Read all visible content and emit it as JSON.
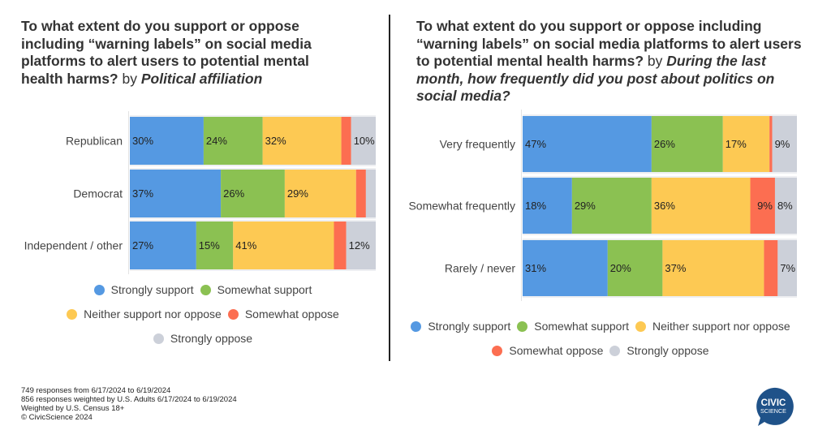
{
  "colors": {
    "strongly_support": "#5599e2",
    "somewhat_support": "#8bc152",
    "neither": "#fdc953",
    "somewhat_oppose": "#fc6e51",
    "strongly_oppose": "#ccd0d9",
    "track": "#eeeff2"
  },
  "left": {
    "title_main": "To what extent do you support or oppose including “warning labels” on social media platforms to alert users to potential mental health harms?",
    "title_by": " by ",
    "title_dim": "Political affiliation"
  },
  "right": {
    "title_main": "To what extent do you support or oppose including “warning labels” on social media platforms to alert users to potential mental health harms?",
    "title_by": " by ",
    "title_dim": "During the last month, how frequently did you post about politics on social media?"
  },
  "legend": {
    "strongly_support": "Strongly support",
    "somewhat_support": "Somewhat support",
    "neither": "Neither support nor oppose",
    "somewhat_oppose": "Somewhat oppose",
    "strongly_oppose": "Strongly oppose"
  },
  "footnote": {
    "line1": "749 responses from 6/17/2024 to 6/19/2024",
    "line2": "856 responses weighted by U.S. Adults 6/17/2024 to 6/19/2024",
    "line3": "Weighted by U.S. Census 18+",
    "line4": "© CivicScience 2024"
  },
  "logo": {
    "line1": "CIVIC",
    "line2": "SCIENCE"
  },
  "chart_data": [
    {
      "type": "bar",
      "orientation": "horizontal",
      "stacked": "percent",
      "title": "To what extent do you support or oppose including “warning labels” on social media platforms to alert users to potential mental health harms? by Political affiliation",
      "categories": [
        "Republican",
        "Democrat",
        "Independent / other"
      ],
      "series": [
        {
          "name": "Strongly support",
          "key": "strongly_support",
          "values": [
            30,
            37,
            27
          ],
          "labels": [
            "30%",
            "37%",
            "27%"
          ]
        },
        {
          "name": "Somewhat support",
          "key": "somewhat_support",
          "values": [
            24,
            26,
            15
          ],
          "labels": [
            "24%",
            "26%",
            "15%"
          ]
        },
        {
          "name": "Neither support nor oppose",
          "key": "neither",
          "values": [
            32,
            29,
            41
          ],
          "labels": [
            "32%",
            "29%",
            "41%"
          ]
        },
        {
          "name": "Somewhat oppose",
          "key": "somewhat_oppose",
          "values": [
            4,
            4,
            5
          ],
          "labels": [
            "",
            "",
            ""
          ]
        },
        {
          "name": "Strongly oppose",
          "key": "strongly_oppose",
          "values": [
            10,
            4,
            12
          ],
          "labels": [
            "10%",
            "",
            "12%"
          ]
        }
      ],
      "xlim": [
        0,
        100
      ],
      "grid": false,
      "legend_position": "bottom"
    },
    {
      "type": "bar",
      "orientation": "horizontal",
      "stacked": "percent",
      "title": "To what extent do you support or oppose including “warning labels” on social media platforms to alert users to potential mental health harms? by During the last month, how frequently did you post about politics on social media?",
      "categories": [
        "Very frequently",
        "Somewhat frequently",
        "Rarely / never"
      ],
      "series": [
        {
          "name": "Strongly support",
          "key": "strongly_support",
          "values": [
            47,
            18,
            31
          ],
          "labels": [
            "47%",
            "18%",
            "31%"
          ]
        },
        {
          "name": "Somewhat support",
          "key": "somewhat_support",
          "values": [
            26,
            29,
            20
          ],
          "labels": [
            "26%",
            "29%",
            "20%"
          ]
        },
        {
          "name": "Neither support nor oppose",
          "key": "neither",
          "values": [
            17,
            36,
            37
          ],
          "labels": [
            "17%",
            "36%",
            "37%"
          ]
        },
        {
          "name": "Somewhat oppose",
          "key": "somewhat_oppose",
          "values": [
            1,
            9,
            5
          ],
          "labels": [
            "",
            "9%",
            ""
          ]
        },
        {
          "name": "Strongly oppose",
          "key": "strongly_oppose",
          "values": [
            9,
            8,
            7
          ],
          "labels": [
            "9%",
            "8%",
            "7%"
          ]
        }
      ],
      "xlim": [
        0,
        100
      ],
      "grid": false,
      "legend_position": "bottom"
    }
  ]
}
